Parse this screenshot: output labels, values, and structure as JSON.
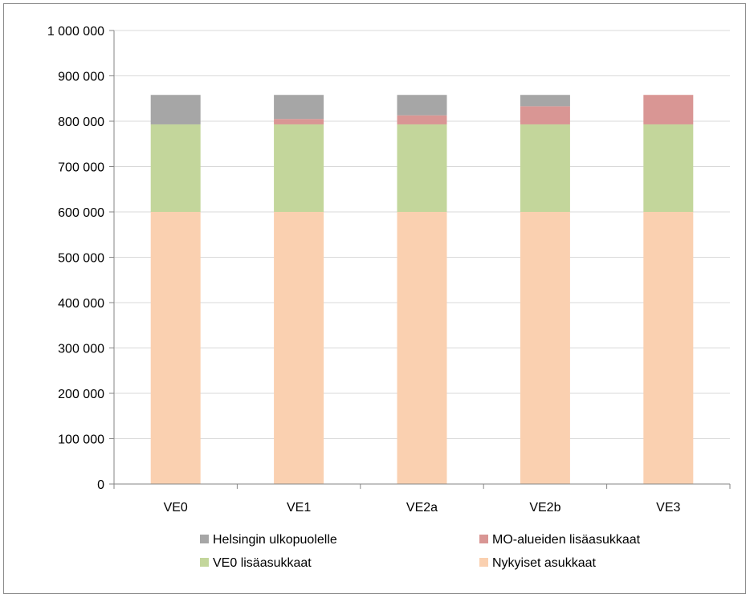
{
  "chart_data": {
    "type": "bar",
    "stacked": true,
    "categories": [
      "VE0",
      "VE1",
      "VE2a",
      "VE2b",
      "VE3"
    ],
    "series": [
      {
        "name": "Nykyiset asukkaat",
        "color": "#fad0b0",
        "values": [
          600000,
          600000,
          600000,
          600000,
          600000
        ]
      },
      {
        "name": "VE0 lisäasukkaat",
        "color": "#c3d69b",
        "values": [
          193000,
          193000,
          193000,
          193000,
          193000
        ]
      },
      {
        "name": "MO-alueiden lisäasukkaat",
        "color": "#d99694",
        "values": [
          0,
          12000,
          20000,
          40000,
          65000
        ]
      },
      {
        "name": "Helsingin ulkopuolelle",
        "color": "#a6a6a6",
        "values": [
          65000,
          53000,
          45000,
          25000,
          0
        ]
      }
    ],
    "ylim": [
      0,
      1000000
    ],
    "yticks": [
      0,
      100000,
      200000,
      300000,
      400000,
      500000,
      600000,
      700000,
      800000,
      900000,
      1000000
    ],
    "ytick_labels": [
      "0",
      "100 000",
      "200 000",
      "300 000",
      "400 000",
      "500 000",
      "600 000",
      "700 000",
      "800 000",
      "900 000",
      "1 000 000"
    ],
    "grid": true,
    "legend": {
      "placement": "bottom",
      "entries": [
        {
          "name": "Helsingin ulkopuolelle",
          "color": "#a6a6a6"
        },
        {
          "name": "MO-alueiden lisäasukkaat",
          "color": "#d99694"
        },
        {
          "name": "VE0 lisäasukkaat",
          "color": "#c3d69b"
        },
        {
          "name": "Nykyiset asukkaat",
          "color": "#fad0b0"
        }
      ]
    }
  }
}
